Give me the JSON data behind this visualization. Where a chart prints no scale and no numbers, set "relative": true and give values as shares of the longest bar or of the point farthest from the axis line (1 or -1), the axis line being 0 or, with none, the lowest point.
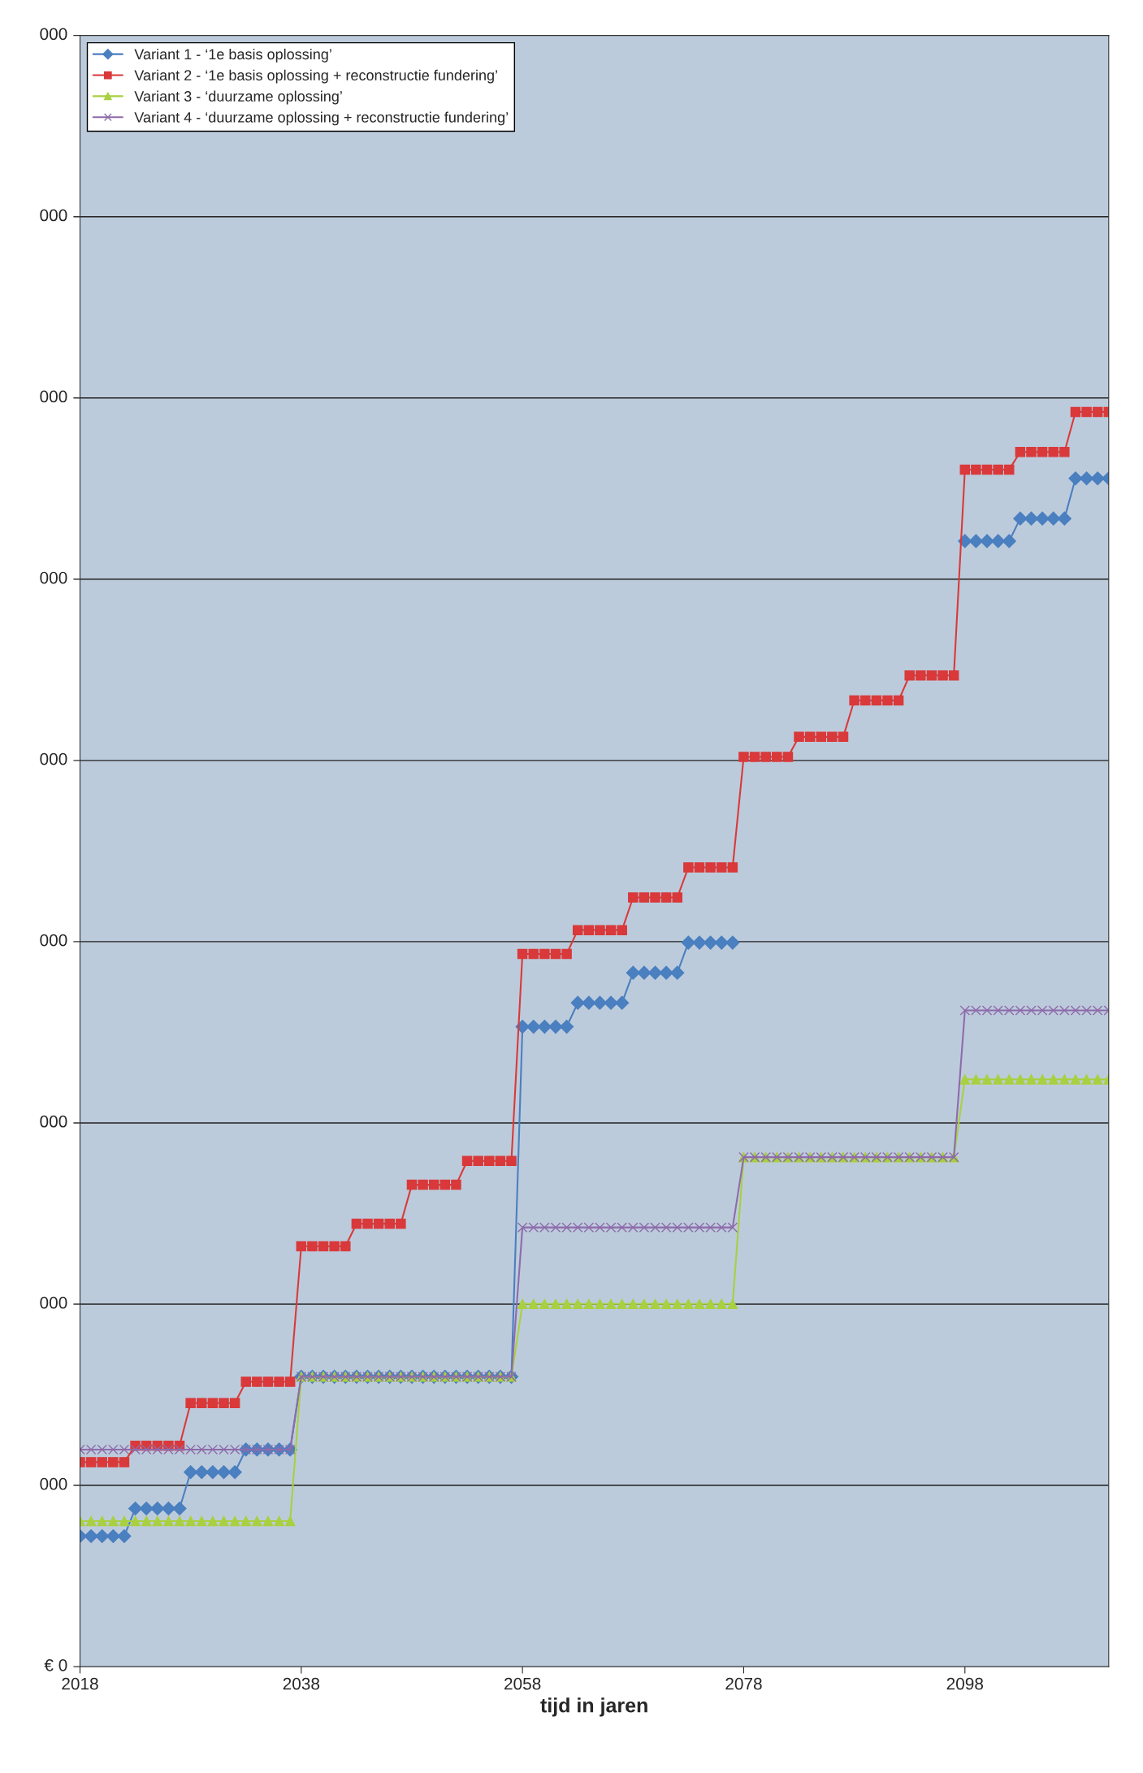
{
  "chart_data": {
    "type": "line",
    "xlabel": "tijd in jaren",
    "relative": true,
    "x": [
      2018,
      2019,
      2020,
      2021,
      2022,
      2023,
      2024,
      2025,
      2026,
      2027,
      2028,
      2029,
      2030,
      2031,
      2032,
      2033,
      2034,
      2035,
      2036,
      2037,
      2038,
      2039,
      2040,
      2041,
      2042,
      2043,
      2044,
      2045,
      2046,
      2047,
      2048,
      2049,
      2050,
      2051,
      2052,
      2053,
      2054,
      2055,
      2056,
      2057,
      2058,
      2059,
      2060,
      2061,
      2062,
      2063,
      2064,
      2065,
      2066,
      2067,
      2068,
      2069,
      2070,
      2071,
      2072,
      2073,
      2074,
      2075,
      2076,
      2077,
      2078,
      2079,
      2080,
      2081,
      2082,
      2083,
      2084,
      2085,
      2086,
      2087,
      2088,
      2089,
      2090,
      2091,
      2092,
      2093,
      2094,
      2095,
      2096,
      2097,
      2098,
      2099,
      2100,
      2101,
      2102,
      2103,
      2104,
      2105,
      2106,
      2107,
      2108,
      2109,
      2110,
      2111
    ],
    "xlim": [
      2018,
      2111
    ],
    "xticks": [
      2018,
      2038,
      2058,
      2078,
      2098
    ],
    "annotations": [
      "€ 0",
      "000",
      "000",
      "000",
      "000",
      "000",
      "000",
      "000",
      "000",
      "000"
    ],
    "grid": "y",
    "legend": "top left",
    "series": [
      {
        "name": "Variant 1 - ‘1e basis oplossing’",
        "color": "#4a7fc0",
        "marker": "diamond",
        "values": [
          0.104,
          0.104,
          0.104,
          0.104,
          0.104,
          0.126,
          0.126,
          0.126,
          0.126,
          0.126,
          0.155,
          0.155,
          0.155,
          0.155,
          0.155,
          0.173,
          0.173,
          0.173,
          0.173,
          0.173,
          0.231,
          0.231,
          0.231,
          0.231,
          0.231,
          0.231,
          0.231,
          0.231,
          0.231,
          0.231,
          0.231,
          0.231,
          0.231,
          0.231,
          0.231,
          0.231,
          0.231,
          0.231,
          0.231,
          0.231,
          0.51,
          0.51,
          0.51,
          0.51,
          0.51,
          0.529,
          0.529,
          0.529,
          0.529,
          0.529,
          0.553,
          0.553,
          0.553,
          0.553,
          0.553,
          0.577,
          0.577,
          0.577,
          0.577,
          0.577,
          null,
          null,
          null,
          null,
          null,
          null,
          null,
          null,
          null,
          null,
          null,
          null,
          null,
          null,
          null,
          null,
          null,
          null,
          null,
          null,
          0.897,
          0.897,
          0.897,
          0.897,
          0.897,
          0.915,
          0.915,
          0.915,
          0.915,
          0.915,
          0.947,
          0.947,
          0.947,
          0.947
        ]
      },
      {
        "name": "Variant 2 - ‘1e basis oplossing + reconstructie fundering’",
        "color": "#d9393a",
        "marker": "square",
        "values": [
          0.163,
          0.163,
          0.163,
          0.163,
          0.163,
          0.176,
          0.176,
          0.176,
          0.176,
          0.176,
          0.21,
          0.21,
          0.21,
          0.21,
          0.21,
          0.227,
          0.227,
          0.227,
          0.227,
          0.227,
          0.335,
          0.335,
          0.335,
          0.335,
          0.335,
          0.353,
          0.353,
          0.353,
          0.353,
          0.353,
          0.384,
          0.384,
          0.384,
          0.384,
          0.384,
          0.403,
          0.403,
          0.403,
          0.403,
          0.403,
          0.568,
          0.568,
          0.568,
          0.568,
          0.568,
          0.587,
          0.587,
          0.587,
          0.587,
          0.587,
          0.613,
          0.613,
          0.613,
          0.613,
          0.613,
          0.637,
          0.637,
          0.637,
          0.637,
          0.637,
          0.725,
          0.725,
          0.725,
          0.725,
          0.725,
          0.741,
          0.741,
          0.741,
          0.741,
          0.741,
          0.77,
          0.77,
          0.77,
          0.77,
          0.77,
          0.79,
          0.79,
          0.79,
          0.79,
          0.79,
          0.954,
          0.954,
          0.954,
          0.954,
          0.954,
          0.968,
          0.968,
          0.968,
          0.968,
          0.968,
          1,
          1,
          1,
          1
        ]
      },
      {
        "name": "Variant 3 - ‘duurzame oplossing’",
        "color": "#a8d040",
        "marker": "triangle",
        "values": [
          0.116,
          0.116,
          0.116,
          0.116,
          0.116,
          0.116,
          0.116,
          0.116,
          0.116,
          0.116,
          0.116,
          0.116,
          0.116,
          0.116,
          0.116,
          0.116,
          0.116,
          0.116,
          0.116,
          0.116,
          0.231,
          0.231,
          0.231,
          0.231,
          0.231,
          0.231,
          0.231,
          0.231,
          0.231,
          0.231,
          0.231,
          0.231,
          0.231,
          0.231,
          0.231,
          0.231,
          0.231,
          0.231,
          0.231,
          0.231,
          0.289,
          0.289,
          0.289,
          0.289,
          0.289,
          0.289,
          0.289,
          0.289,
          0.289,
          0.289,
          0.289,
          0.289,
          0.289,
          0.289,
          0.289,
          0.289,
          0.289,
          0.289,
          0.289,
          0.289,
          0.406,
          0.406,
          0.406,
          0.406,
          0.406,
          0.406,
          0.406,
          0.406,
          0.406,
          0.406,
          0.406,
          0.406,
          0.406,
          0.406,
          0.406,
          0.406,
          0.406,
          0.406,
          0.406,
          0.406,
          0.468,
          0.468,
          0.468,
          0.468,
          0.468,
          0.468,
          0.468,
          0.468,
          0.468,
          0.468,
          0.468,
          0.468,
          0.468,
          0.468
        ]
      },
      {
        "name": "Variant 4 - ‘duurzame oplossing + reconstructie fundering’",
        "color": "#8e6bab",
        "marker": "cross",
        "values": [
          0.173,
          0.173,
          0.173,
          0.173,
          0.173,
          0.173,
          0.173,
          0.173,
          0.173,
          0.173,
          0.173,
          0.173,
          0.173,
          0.173,
          0.173,
          0.173,
          0.173,
          0.173,
          0.173,
          0.173,
          0.231,
          0.231,
          0.231,
          0.231,
          0.231,
          0.231,
          0.231,
          0.231,
          0.231,
          0.231,
          0.231,
          0.231,
          0.231,
          0.231,
          0.231,
          0.231,
          0.231,
          0.231,
          0.231,
          0.231,
          0.35,
          0.35,
          0.35,
          0.35,
          0.35,
          0.35,
          0.35,
          0.35,
          0.35,
          0.35,
          0.35,
          0.35,
          0.35,
          0.35,
          0.35,
          0.35,
          0.35,
          0.35,
          0.35,
          0.35,
          0.406,
          0.406,
          0.406,
          0.406,
          0.406,
          0.406,
          0.406,
          0.406,
          0.406,
          0.406,
          0.406,
          0.406,
          0.406,
          0.406,
          0.406,
          0.406,
          0.406,
          0.406,
          0.406,
          0.406,
          0.523,
          0.523,
          0.523,
          0.523,
          0.523,
          0.523,
          0.523,
          0.523,
          0.523,
          0.523,
          0.523,
          0.523,
          0.523,
          0.523
        ]
      }
    ]
  }
}
